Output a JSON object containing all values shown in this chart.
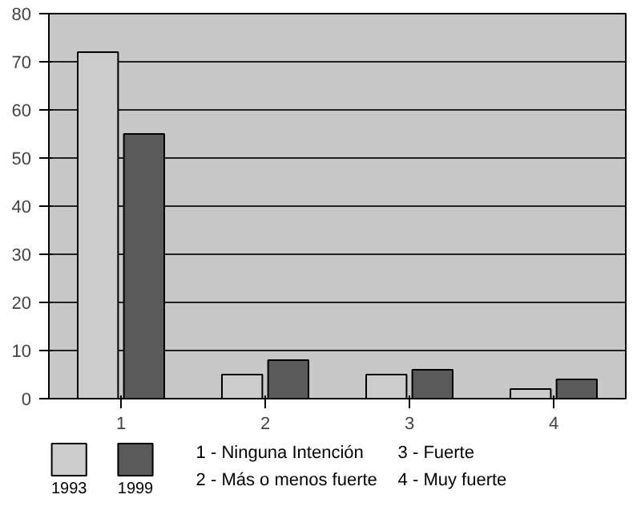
{
  "chart_data": {
    "type": "bar",
    "categories": [
      "1",
      "2",
      "3",
      "4"
    ],
    "series": [
      {
        "name": "1993",
        "color": "#cccccc",
        "values": [
          72,
          5,
          5,
          2
        ]
      },
      {
        "name": "1999",
        "color": "#5a5a5a",
        "values": [
          55,
          8,
          6,
          4
        ]
      }
    ],
    "ylim": [
      0,
      80
    ],
    "yticks": [
      0,
      10,
      20,
      30,
      40,
      50,
      60,
      70,
      80
    ],
    "grid": "y",
    "legend": "bottom",
    "annotations": [
      "1 - Ninguna Intención",
      "2 - Más o menos fuerte",
      "3 - Fuerte",
      "4 -  Muy fuerte"
    ]
  }
}
